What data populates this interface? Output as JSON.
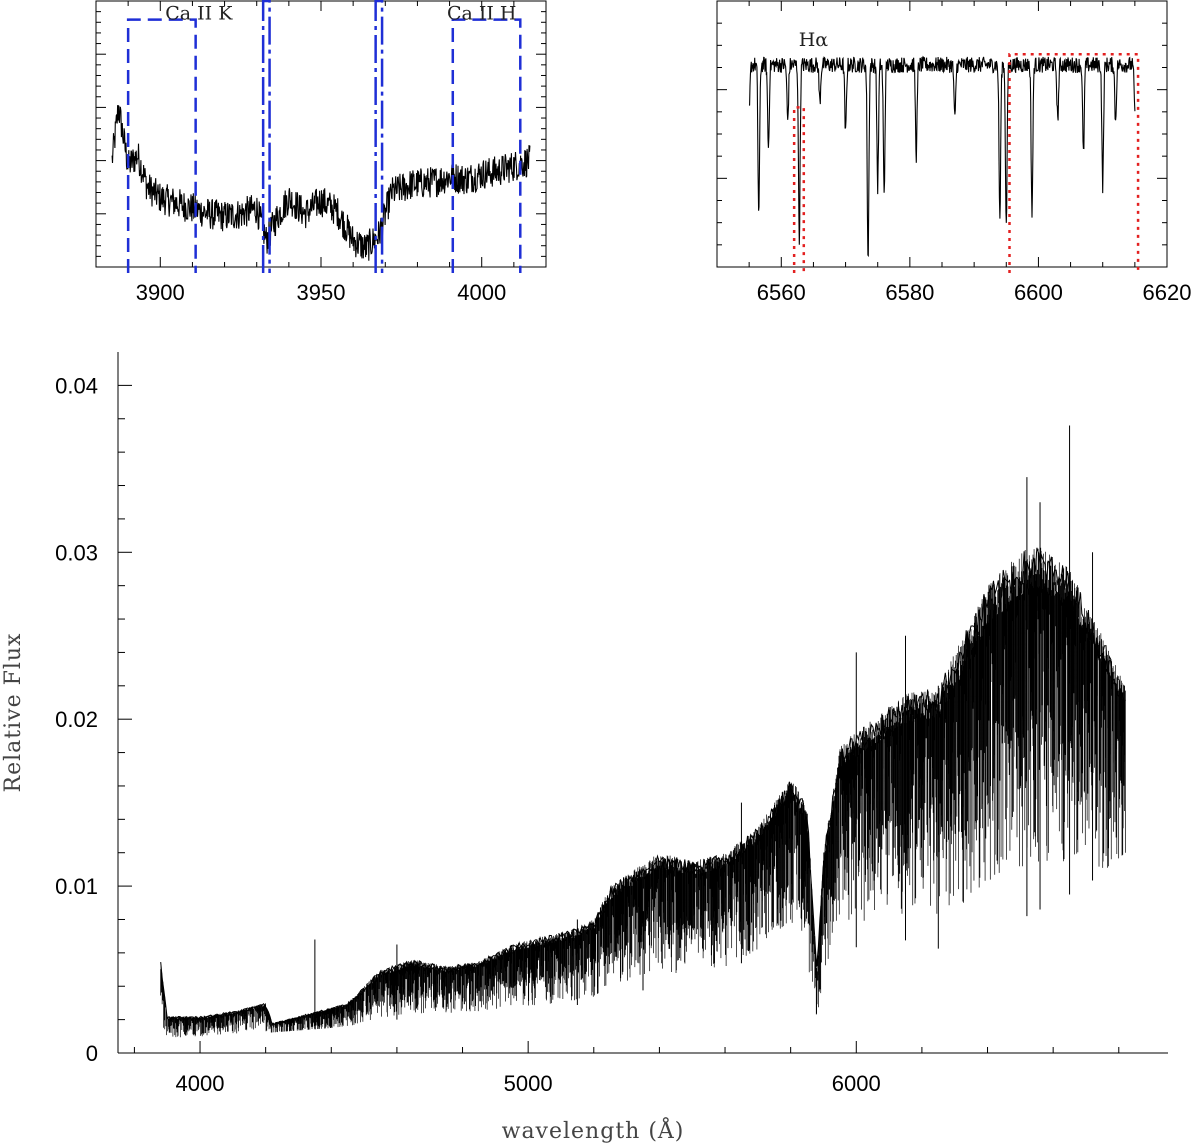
{
  "chart_data": [
    {
      "id": "ca",
      "type": "line",
      "title": "",
      "xlabel": "",
      "ylabel": "",
      "xlim": [
        3880,
        4020
      ],
      "ylim": [
        0,
        1
      ],
      "xticks_labeled": [
        3900,
        3950,
        4000
      ],
      "xtick_step_minor": 10,
      "ytick_count_minor": 25,
      "yticks_major_every": 5,
      "series": [
        {
          "color": "#000000",
          "points": [
            [
              3885,
              0.4
            ],
            [
              3887,
              0.6
            ],
            [
              3890,
              0.38
            ],
            [
              3893,
              0.42
            ],
            [
              3896,
              0.3
            ],
            [
              3900,
              0.26
            ],
            [
              3905,
              0.24
            ],
            [
              3910,
              0.22
            ],
            [
              3915,
              0.2
            ],
            [
              3920,
              0.19
            ],
            [
              3925,
              0.2
            ],
            [
              3930,
              0.22
            ],
            [
              3933,
              0.1
            ],
            [
              3936,
              0.18
            ],
            [
              3940,
              0.26
            ],
            [
              3945,
              0.2
            ],
            [
              3950,
              0.25
            ],
            [
              3955,
              0.21
            ],
            [
              3960,
              0.1
            ],
            [
              3964,
              0.07
            ],
            [
              3968,
              0.12
            ],
            [
              3972,
              0.28
            ],
            [
              3978,
              0.31
            ],
            [
              3985,
              0.32
            ],
            [
              3990,
              0.34
            ],
            [
              3995,
              0.33
            ],
            [
              4000,
              0.35
            ],
            [
              4005,
              0.36
            ],
            [
              4010,
              0.38
            ],
            [
              4015,
              0.4
            ]
          ],
          "noise": 0.06
        }
      ],
      "annotations": [
        {
          "text": "Ca II K",
          "x": 3912,
          "y": 0.93
        },
        {
          "text": "Ca II H",
          "x": 4000,
          "y": 0.93
        }
      ],
      "boxes": [
        {
          "x": [
            3890,
            3911
          ],
          "y": [
            0,
            0.93
          ],
          "style": "dashed",
          "color": "#1f2fd6"
        },
        {
          "x": [
            3932,
            3934
          ],
          "y": [
            0,
            1.0
          ],
          "style": "dashdot",
          "color": "#1f2fd6"
        },
        {
          "x": [
            3967,
            3969
          ],
          "y": [
            0,
            1.0
          ],
          "style": "dashdot",
          "color": "#1f2fd6"
        },
        {
          "x": [
            3991,
            4012
          ],
          "y": [
            0,
            0.93
          ],
          "style": "dashed",
          "color": "#1f2fd6"
        }
      ]
    },
    {
      "id": "ha",
      "type": "line",
      "title": "",
      "xlabel": "",
      "ylabel": "",
      "xlim": [
        6550,
        6620
      ],
      "ylim": [
        0,
        1
      ],
      "xticks_labeled": [
        6560,
        6580,
        6600,
        6620
      ],
      "xtick_step_minor": 5,
      "ytick_count_minor": 12,
      "yticks_major_every": 4,
      "series": [
        {
          "color": "#000000",
          "baseline": 0.76,
          "noise": 0.03,
          "absorption_lines": [
            [
              6553,
              0.32
            ],
            [
              6555,
              0.58
            ],
            [
              6556.5,
              0.2
            ],
            [
              6558,
              0.45
            ],
            [
              6561,
              0.55
            ],
            [
              6562.8,
              0.1
            ],
            [
              6566,
              0.62
            ],
            [
              6570,
              0.5
            ],
            [
              6573.5,
              0.02
            ],
            [
              6575,
              0.3
            ],
            [
              6576,
              0.28
            ],
            [
              6581,
              0.42
            ],
            [
              6587,
              0.55
            ],
            [
              6594,
              0.18
            ],
            [
              6595,
              0.15
            ],
            [
              6599,
              0.2
            ],
            [
              6603,
              0.55
            ],
            [
              6607,
              0.42
            ],
            [
              6610,
              0.3
            ],
            [
              6612,
              0.55
            ],
            [
              6615,
              0.6
            ]
          ]
        }
      ],
      "annotations": [
        {
          "text": "Hα",
          "x": 6565,
          "y": 0.83
        }
      ],
      "boxes": [
        {
          "x": [
            6562,
            6563.5
          ],
          "y": [
            0,
            0.6
          ],
          "style": "dotted",
          "color": "#e32020"
        },
        {
          "x": [
            6595.5,
            6615.5
          ],
          "y": [
            0,
            0.8
          ],
          "style": "dotted",
          "color": "#e32020"
        }
      ]
    },
    {
      "id": "main",
      "type": "line",
      "title": "",
      "xlabel": "wavelength (Å)",
      "ylabel": "Relative Flux",
      "xlim": [
        3750,
        6950
      ],
      "ylim": [
        0,
        0.042
      ],
      "xticks_labeled": [
        4000,
        5000,
        6000
      ],
      "yticks_labeled": [
        {
          "v": 0,
          "label": "0"
        },
        {
          "v": 0.01,
          "label": "0.01"
        },
        {
          "v": 0.02,
          "label": "0.02"
        },
        {
          "v": 0.03,
          "label": "0.03"
        },
        {
          "v": 0.04,
          "label": "0.04"
        }
      ],
      "xtick_step_minor": 200,
      "ytick_step_minor": 0.002,
      "series": [
        {
          "color": "#000000",
          "upper": [
            [
              3880,
              0.0055
            ],
            [
              3900,
              0.0022
            ],
            [
              4000,
              0.0022
            ],
            [
              4100,
              0.0025
            ],
            [
              4200,
              0.003
            ],
            [
              4220,
              0.0018
            ],
            [
              4300,
              0.0022
            ],
            [
              4450,
              0.003
            ],
            [
              4550,
              0.005
            ],
            [
              4650,
              0.0056
            ],
            [
              4750,
              0.0052
            ],
            [
              4850,
              0.0055
            ],
            [
              4950,
              0.0065
            ],
            [
              5050,
              0.007
            ],
            [
              5150,
              0.0075
            ],
            [
              5200,
              0.008
            ],
            [
              5250,
              0.01
            ],
            [
              5400,
              0.012
            ],
            [
              5500,
              0.0115
            ],
            [
              5600,
              0.012
            ],
            [
              5700,
              0.0135
            ],
            [
              5800,
              0.0165
            ],
            [
              5850,
              0.015
            ],
            [
              5880,
              0.005
            ],
            [
              5900,
              0.012
            ],
            [
              5950,
              0.0185
            ],
            [
              6050,
              0.02
            ],
            [
              6150,
              0.0215
            ],
            [
              6250,
              0.022
            ],
            [
              6300,
              0.024
            ],
            [
              6400,
              0.028
            ],
            [
              6500,
              0.03
            ],
            [
              6550,
              0.0305
            ],
            [
              6650,
              0.029
            ],
            [
              6750,
              0.025
            ],
            [
              6820,
              0.022
            ]
          ],
          "lower": [
            [
              3880,
              0.0012
            ],
            [
              3900,
              0.0008
            ],
            [
              4000,
              0.001
            ],
            [
              4200,
              0.0012
            ],
            [
              4400,
              0.0015
            ],
            [
              4600,
              0.002
            ],
            [
              4800,
              0.0025
            ],
            [
              5000,
              0.0025
            ],
            [
              5200,
              0.003
            ],
            [
              5400,
              0.004
            ],
            [
              5600,
              0.0045
            ],
            [
              5800,
              0.008
            ],
            [
              5880,
              0.0015
            ],
            [
              5950,
              0.006
            ],
            [
              6100,
              0.007
            ],
            [
              6300,
              0.006
            ],
            [
              6500,
              0.008
            ],
            [
              6700,
              0.01
            ],
            [
              6820,
              0.012
            ]
          ],
          "spikes": [
            [
              4350,
              0.0068
            ],
            [
              4600,
              0.0065
            ],
            [
              5150,
              0.008
            ],
            [
              5350,
              0.0085
            ],
            [
              5650,
              0.015
            ],
            [
              6000,
              0.024
            ],
            [
              6150,
              0.025
            ],
            [
              6250,
              0.022
            ],
            [
              6520,
              0.0345
            ],
            [
              6560,
              0.033
            ],
            [
              6650,
              0.0376
            ],
            [
              6720,
              0.03
            ]
          ]
        }
      ]
    }
  ]
}
